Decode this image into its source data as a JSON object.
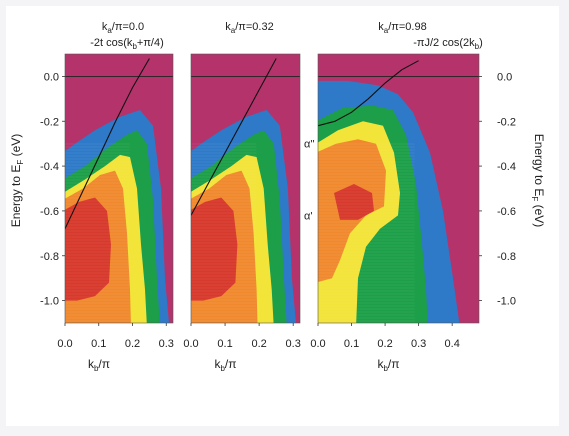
{
  "chart_data": {
    "type": "heatmap",
    "panels": [
      {
        "id": "p1",
        "title_main": "k",
        "title_sub": "a",
        "title_rest": "/π=0.0",
        "curve_label": "-2t cos(k",
        "curve_label_sub": "b",
        "curve_label_rest": "+π/4)",
        "xlim": [
          0.0,
          0.32
        ],
        "xticks": [
          "0.0",
          "0.1",
          "0.2",
          "0.3"
        ],
        "dispersion": [
          [
            0.0,
            -0.68
          ],
          [
            0.05,
            -0.52
          ],
          [
            0.1,
            -0.36
          ],
          [
            0.15,
            -0.2
          ],
          [
            0.2,
            -0.05
          ],
          [
            0.25,
            0.08
          ]
        ]
      },
      {
        "id": "p2",
        "title_main": "k",
        "title_sub": "a",
        "title_rest": "/π=0.32",
        "xlim": [
          0.0,
          0.32
        ],
        "xticks": [
          "0.0",
          "0.1",
          "0.2",
          "0.3"
        ],
        "dispersion": [
          [
            0.0,
            -0.62
          ],
          [
            0.05,
            -0.48
          ],
          [
            0.1,
            -0.34
          ],
          [
            0.15,
            -0.2
          ],
          [
            0.2,
            -0.06
          ],
          [
            0.25,
            0.08
          ]
        ]
      },
      {
        "id": "p3",
        "title_main": "k",
        "title_sub": "a",
        "title_rest": "/π=0.98",
        "curve_label": "-πJ/2 cos(2k",
        "curve_label_sub": "b",
        "curve_label_rest": ")",
        "xlim": [
          0.0,
          0.48
        ],
        "xticks": [
          "0.0",
          "0.1",
          "0.2",
          "0.3",
          "0.4"
        ],
        "dispersion": [
          [
            0.0,
            -0.22
          ],
          [
            0.05,
            -0.2
          ],
          [
            0.1,
            -0.16
          ],
          [
            0.15,
            -0.1
          ],
          [
            0.2,
            -0.03
          ],
          [
            0.25,
            0.03
          ],
          [
            0.3,
            0.07
          ]
        ],
        "band_annotations": [
          "α''",
          "α'"
        ]
      }
    ],
    "ylim": [
      -1.1,
      0.1
    ],
    "yticks_left": [
      "0.0",
      "-0.2",
      "-0.4",
      "-0.6",
      "-0.8",
      "-1.0"
    ],
    "yticks_right": [
      "0.0",
      "-0.2",
      "-0.4",
      "-0.6",
      "-0.8",
      "-1.0"
    ],
    "ylabel_main": "Energy to E",
    "ylabel_sub": "F",
    "ylabel_rest": " (eV)",
    "xlabel_main": "k",
    "xlabel_sub": "b",
    "xlabel_rest": "/π",
    "colormap": [
      "#b5336b",
      "#2e79c8",
      "#1c9f48",
      "#f3e43a",
      "#f0892e",
      "#d8392d"
    ]
  }
}
